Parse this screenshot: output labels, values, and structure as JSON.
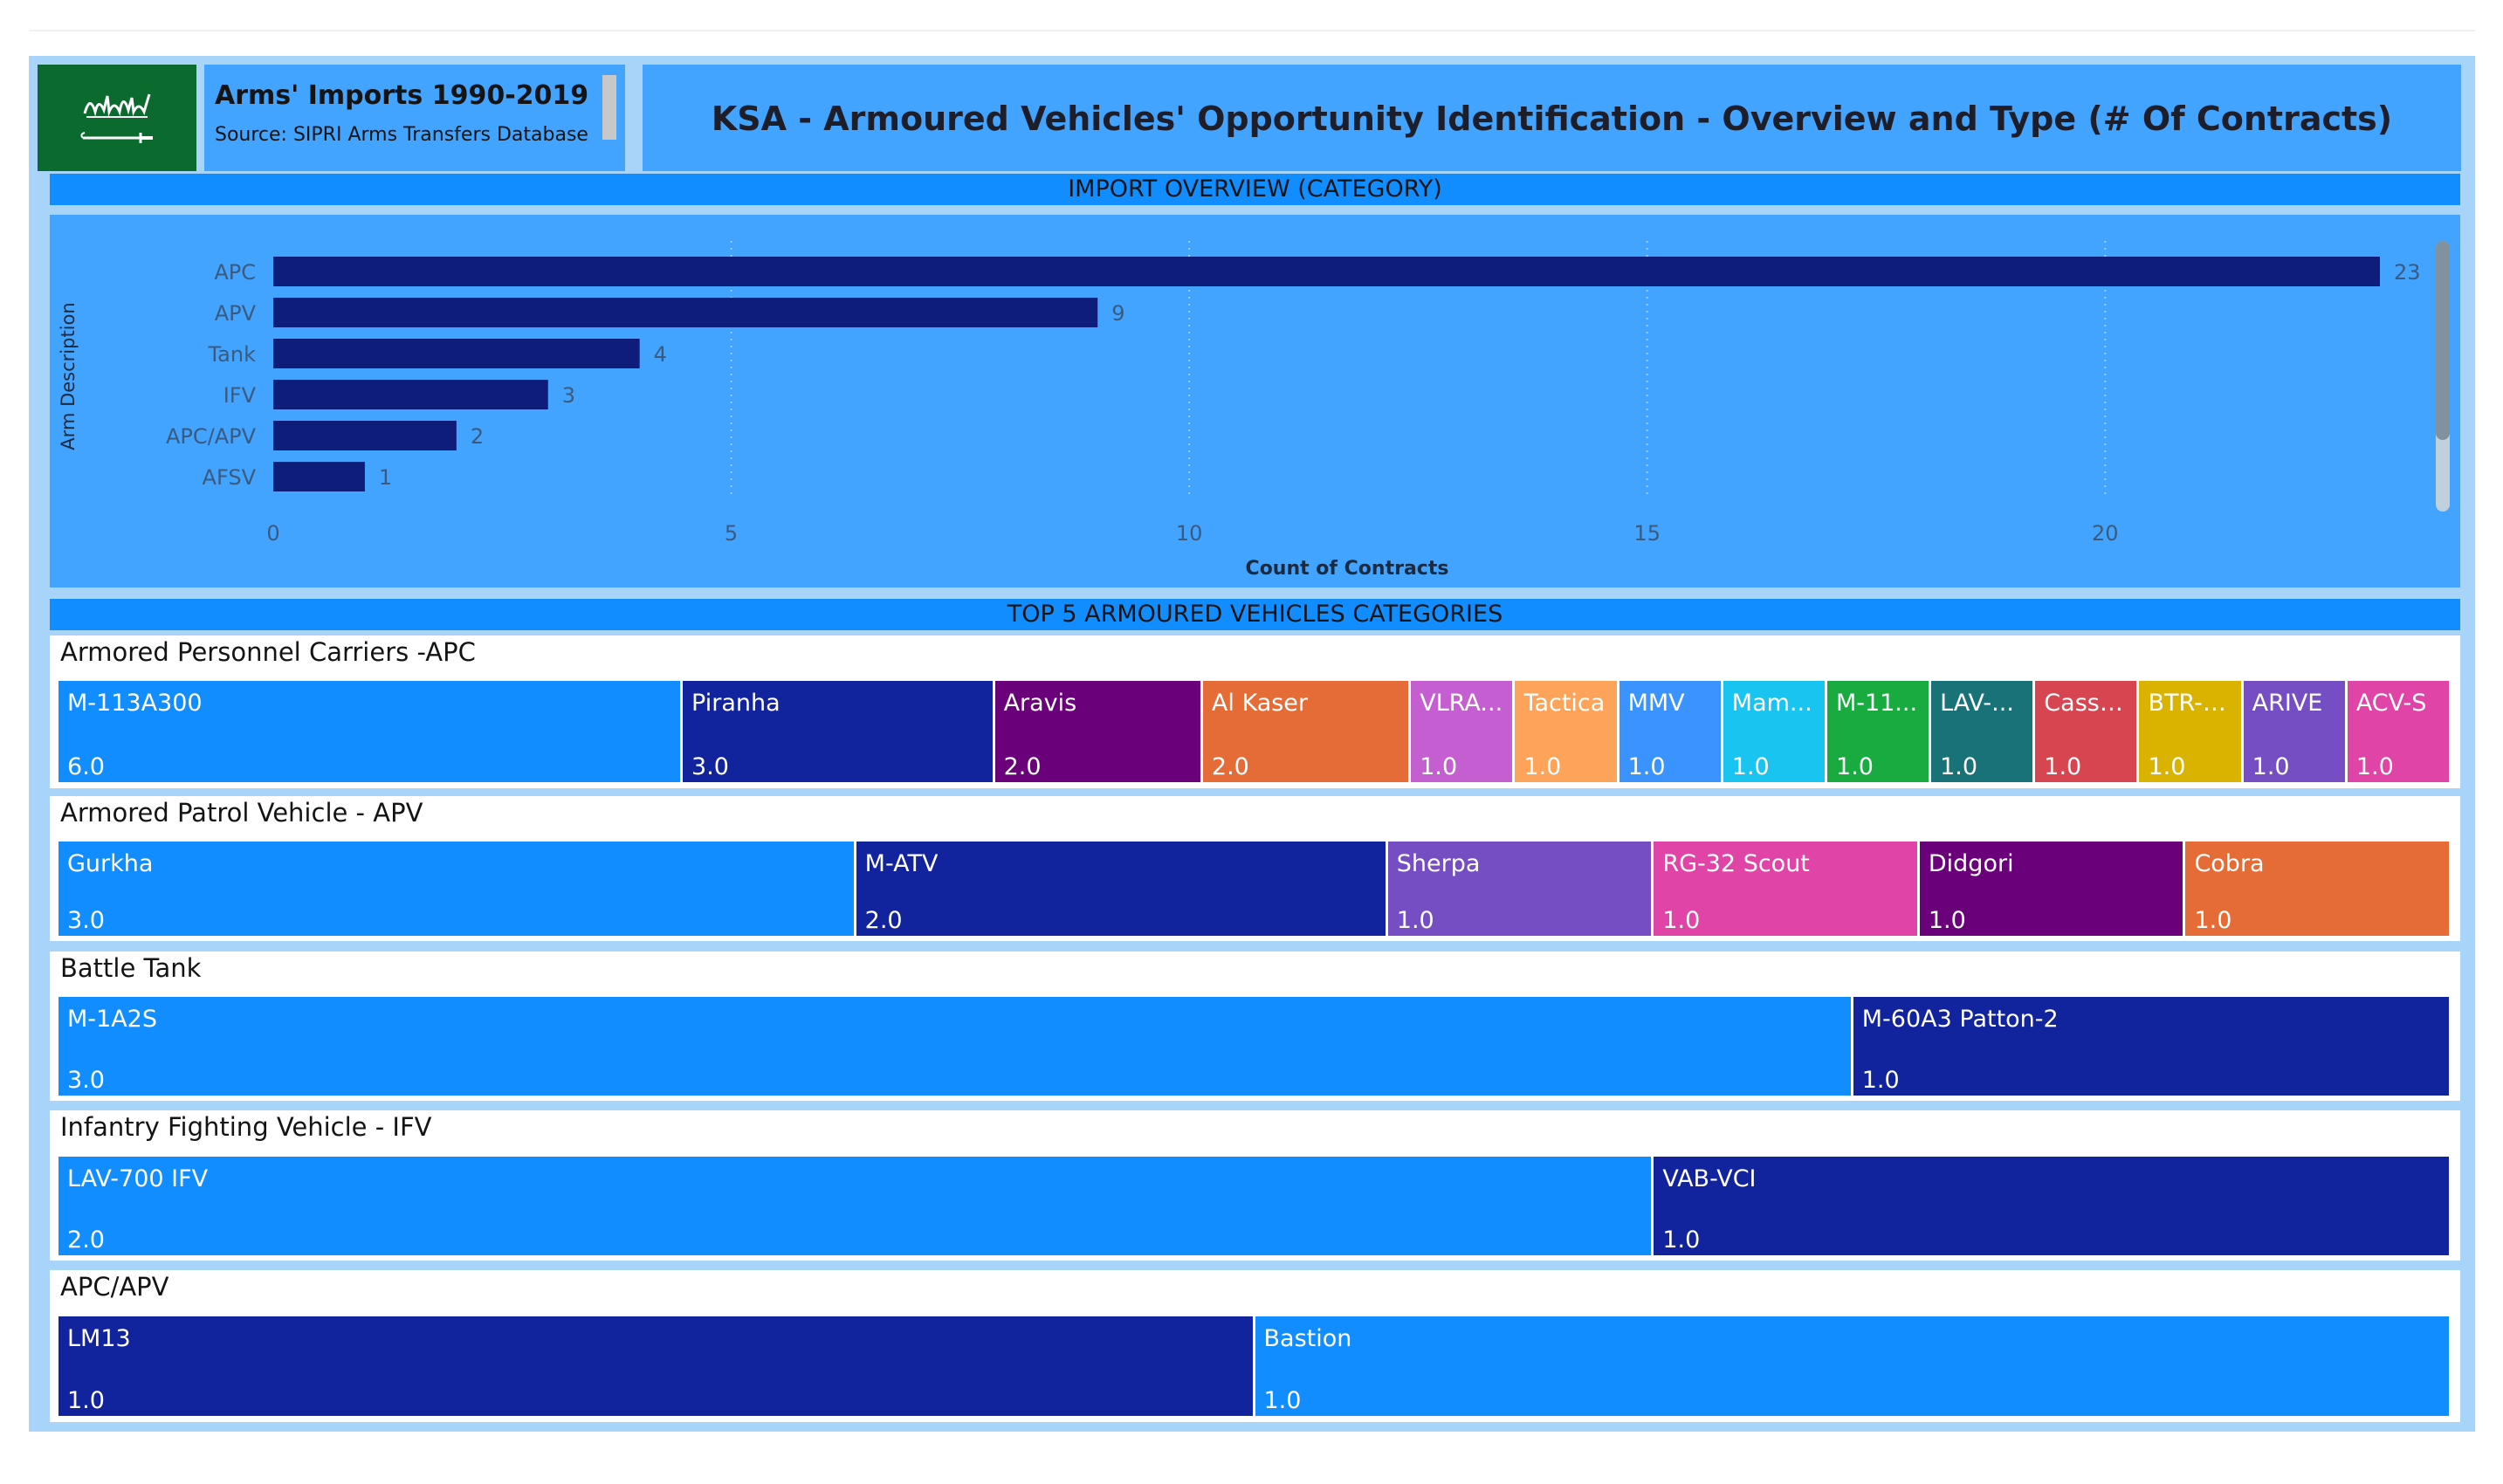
{
  "header": {
    "dataset_title": "Arms' Imports 1990-2019",
    "source": "Source: SIPRI Arms Transfers Database",
    "report_title": "KSA  -  Armoured Vehicles' Opportunity Identification - Overview and Type (# Of Contracts)"
  },
  "section_headers": {
    "overview": "IMPORT OVERVIEW (CATEGORY)",
    "top5": "TOP 5 ARMOURED VEHICLES CATEGORIES"
  },
  "colors": {
    "bar": "#0f1d7a",
    "panel": "#42a4ff",
    "accent": "#118dff"
  },
  "chart_data": [
    {
      "type": "bar",
      "orientation": "horizontal",
      "categories": [
        "APC",
        "APV",
        "Tank",
        "IFV",
        "APC/APV",
        "AFSV"
      ],
      "values": [
        23,
        9,
        4,
        3,
        2,
        1
      ],
      "xlabel": "Count of Contracts",
      "ylabel": "Arm Description",
      "xlim": [
        0,
        23
      ],
      "xticks": [
        0,
        5,
        10,
        15,
        20
      ],
      "grid": true,
      "data_labels": true
    },
    {
      "type": "treemap",
      "title": "Armored Personnel Carriers -APC",
      "items": [
        {
          "name": "M-113A300",
          "value": "6.0",
          "color": "#118dff"
        },
        {
          "name": "Piranha",
          "value": "3.0",
          "color": "#12239e"
        },
        {
          "name": "Aravis",
          "value": "2.0",
          "color": "#6b007b"
        },
        {
          "name": "Al Kaser",
          "value": "2.0",
          "color": "#e66c37"
        },
        {
          "name": "VLRA...",
          "value": "1.0",
          "color": "#c55fd1"
        },
        {
          "name": "Tactica",
          "value": "1.0",
          "color": "#fea35a"
        },
        {
          "name": "MMV",
          "value": "1.0",
          "color": "#3b93ff"
        },
        {
          "name": "Mam...",
          "value": "1.0",
          "color": "#19c4f0"
        },
        {
          "name": "M-11...",
          "value": "1.0",
          "color": "#1aab40"
        },
        {
          "name": "LAV-...",
          "value": "1.0",
          "color": "#197278"
        },
        {
          "name": "Cassp...",
          "value": "1.0",
          "color": "#d64550"
        },
        {
          "name": "BTR-6...",
          "value": "1.0",
          "color": "#d9b300"
        },
        {
          "name": "ARIVE",
          "value": "1.0",
          "color": "#744ec2"
        },
        {
          "name": "ACV-S",
          "value": "1.0",
          "color": "#e044a7"
        }
      ]
    },
    {
      "type": "treemap",
      "title": "Armored Patrol Vehicle - APV",
      "items": [
        {
          "name": "Gurkha",
          "value": "3.0",
          "color": "#118dff"
        },
        {
          "name": "M-ATV",
          "value": "2.0",
          "color": "#12239e"
        },
        {
          "name": "Sherpa",
          "value": "1.0",
          "color": "#744ec2"
        },
        {
          "name": "RG-32 Scout",
          "value": "1.0",
          "color": "#e044a7"
        },
        {
          "name": "Didgori",
          "value": "1.0",
          "color": "#6b007b"
        },
        {
          "name": "Cobra",
          "value": "1.0",
          "color": "#e66c37"
        }
      ]
    },
    {
      "type": "treemap",
      "title": "Battle Tank",
      "items": [
        {
          "name": "M-1A2S",
          "value": "3.0",
          "color": "#118dff"
        },
        {
          "name": "M-60A3 Patton-2",
          "value": "1.0",
          "color": "#12239e"
        }
      ]
    },
    {
      "type": "treemap",
      "title": "Infantry Fighting Vehicle - IFV",
      "items": [
        {
          "name": "LAV-700 IFV",
          "value": "2.0",
          "color": "#118dff"
        },
        {
          "name": "VAB-VCI",
          "value": "1.0",
          "color": "#12239e"
        }
      ]
    },
    {
      "type": "treemap",
      "title": "APC/APV",
      "items": [
        {
          "name": "LM13",
          "value": "1.0",
          "color": "#12239e"
        },
        {
          "name": "Bastion",
          "value": "1.0",
          "color": "#118dff"
        }
      ]
    }
  ]
}
